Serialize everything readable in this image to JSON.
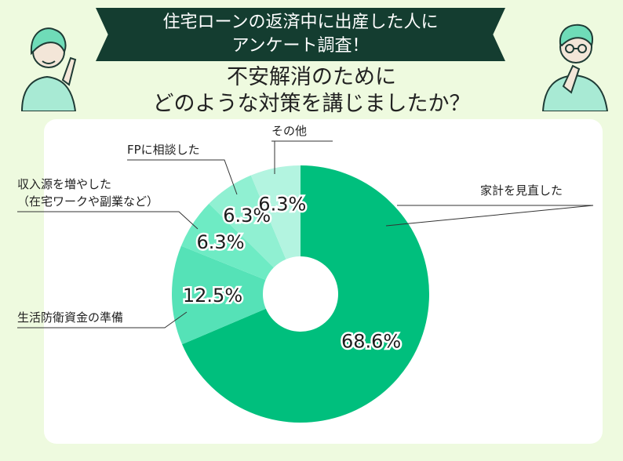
{
  "header": {
    "line1": "住宅ローンの返済中に出産した人に",
    "line2": "アンケート調査！"
  },
  "question": {
    "line1": "不安解消のために",
    "line2": "どのような対策を講じましたか？"
  },
  "colors": {
    "background": "#eefadf",
    "banner": "#143d30",
    "slices": [
      "#00bf7d",
      "#55e2b7",
      "#6eebc4",
      "#90f0d2",
      "#b3f4e0",
      "#e6f7f1"
    ]
  },
  "chart_data": {
    "type": "pie",
    "donut": true,
    "slices": [
      {
        "label": "家計を見直した",
        "value": 68.6,
        "display": "68.6%"
      },
      {
        "label": "生活防衛資金の準備",
        "value": 12.5,
        "display": "12.5%"
      },
      {
        "label": "収入源を増やした",
        "label2": "（在宅ワークや副業など）",
        "value": 6.3,
        "display": "6.3%"
      },
      {
        "label": "FPに相談した",
        "value": 6.3,
        "display": "6.3%"
      },
      {
        "label": "その他",
        "value": 6.3,
        "display": "6.3%"
      }
    ]
  }
}
